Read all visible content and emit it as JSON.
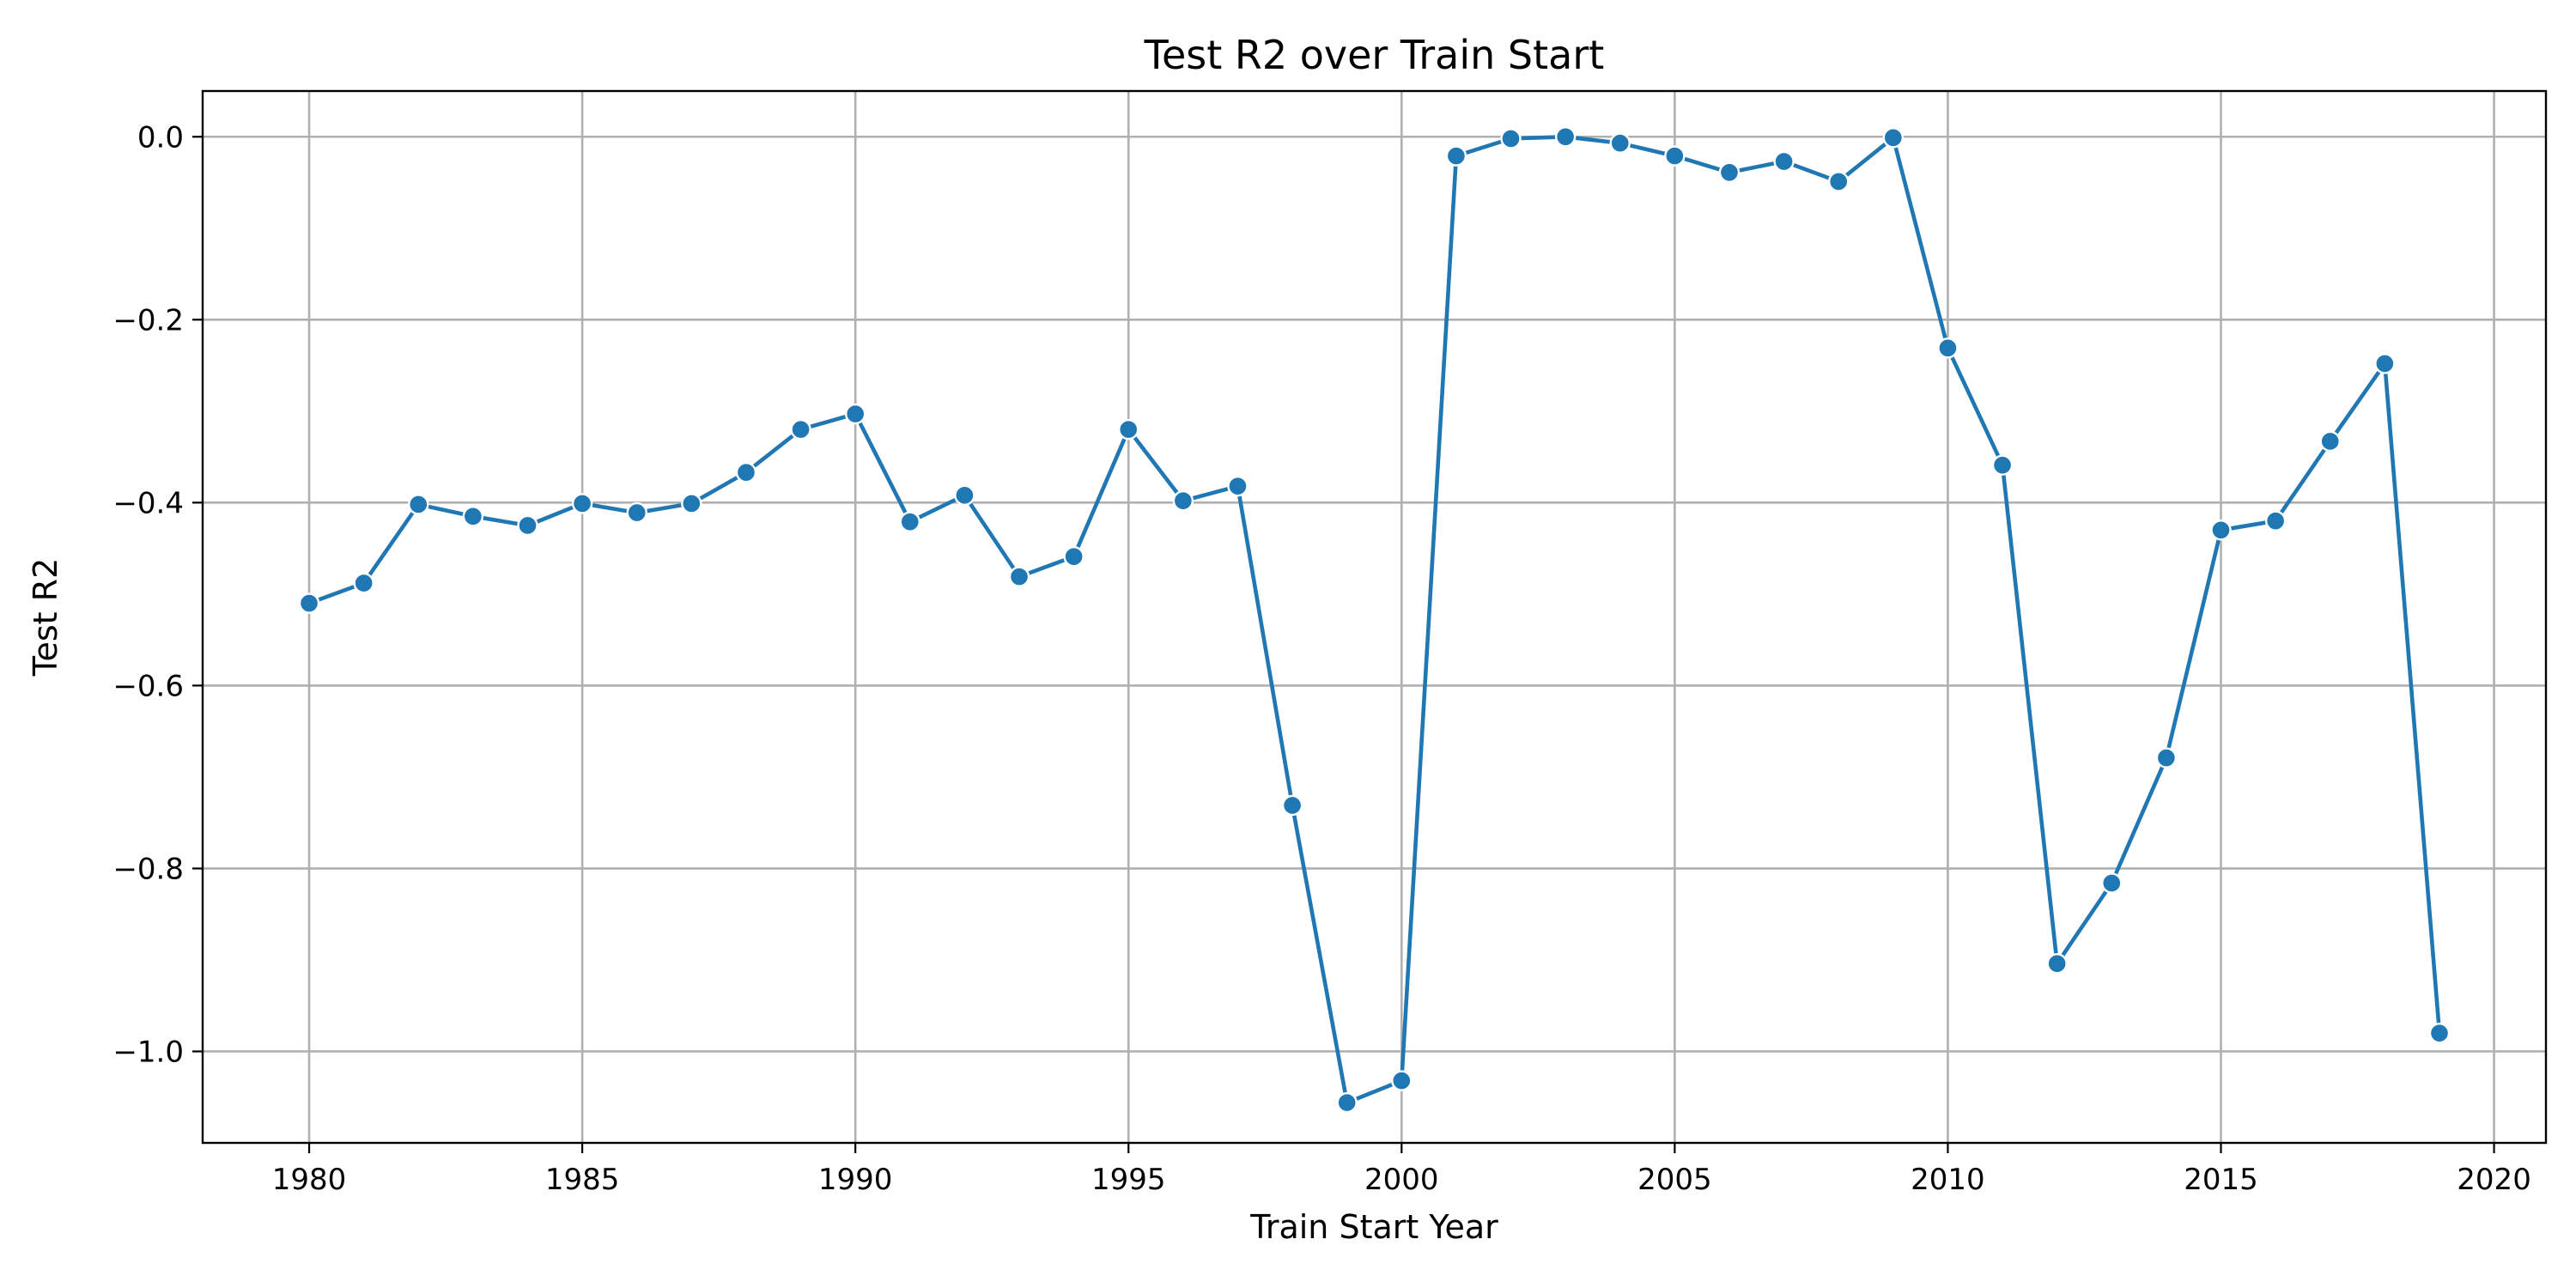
{
  "chart_data": {
    "type": "line",
    "title": "Test R2 over Train Start",
    "xlabel": "Train Start Year",
    "ylabel": "Test R2",
    "xlim": [
      1978.05,
      2020.95
    ],
    "ylim": [
      -1.1,
      0.05
    ],
    "xticks": [
      1980,
      1985,
      1990,
      1995,
      2000,
      2005,
      2010,
      2015,
      2020
    ],
    "yticks": [
      0.0,
      -0.2,
      -0.4,
      -0.6,
      -0.8,
      -1.0
    ],
    "ytick_labels": [
      "0.0",
      "−0.2",
      "−0.4",
      "−0.6",
      "−0.8",
      "−1.0"
    ],
    "grid": true,
    "legend": "none",
    "series": [
      {
        "color": "#1f77b4",
        "marker": "circle",
        "x": [
          1980,
          1981,
          1982,
          1983,
          1984,
          1985,
          1986,
          1987,
          1988,
          1989,
          1990,
          1991,
          1992,
          1993,
          1994,
          1995,
          1996,
          1997,
          1998,
          1999,
          2000,
          2001,
          2002,
          2003,
          2004,
          2005,
          2006,
          2007,
          2008,
          2009,
          2010,
          2011,
          2012,
          2013,
          2014,
          2015,
          2016,
          2017,
          2018,
          2019
        ],
        "y": [
          -0.51,
          -0.488,
          -0.402,
          -0.415,
          -0.425,
          -0.401,
          -0.411,
          -0.401,
          -0.367,
          -0.32,
          -0.303,
          -0.421,
          -0.392,
          -0.481,
          -0.459,
          -0.32,
          -0.398,
          -0.382,
          -0.731,
          -1.056,
          -1.032,
          -0.021,
          -0.002,
          0.0,
          -0.007,
          -0.021,
          -0.039,
          -0.027,
          -0.049,
          -0.001,
          -0.231,
          -0.359,
          -0.904,
          -0.816,
          -0.679,
          -0.43,
          -0.42,
          -0.333,
          -0.248,
          -0.98
        ]
      }
    ]
  }
}
